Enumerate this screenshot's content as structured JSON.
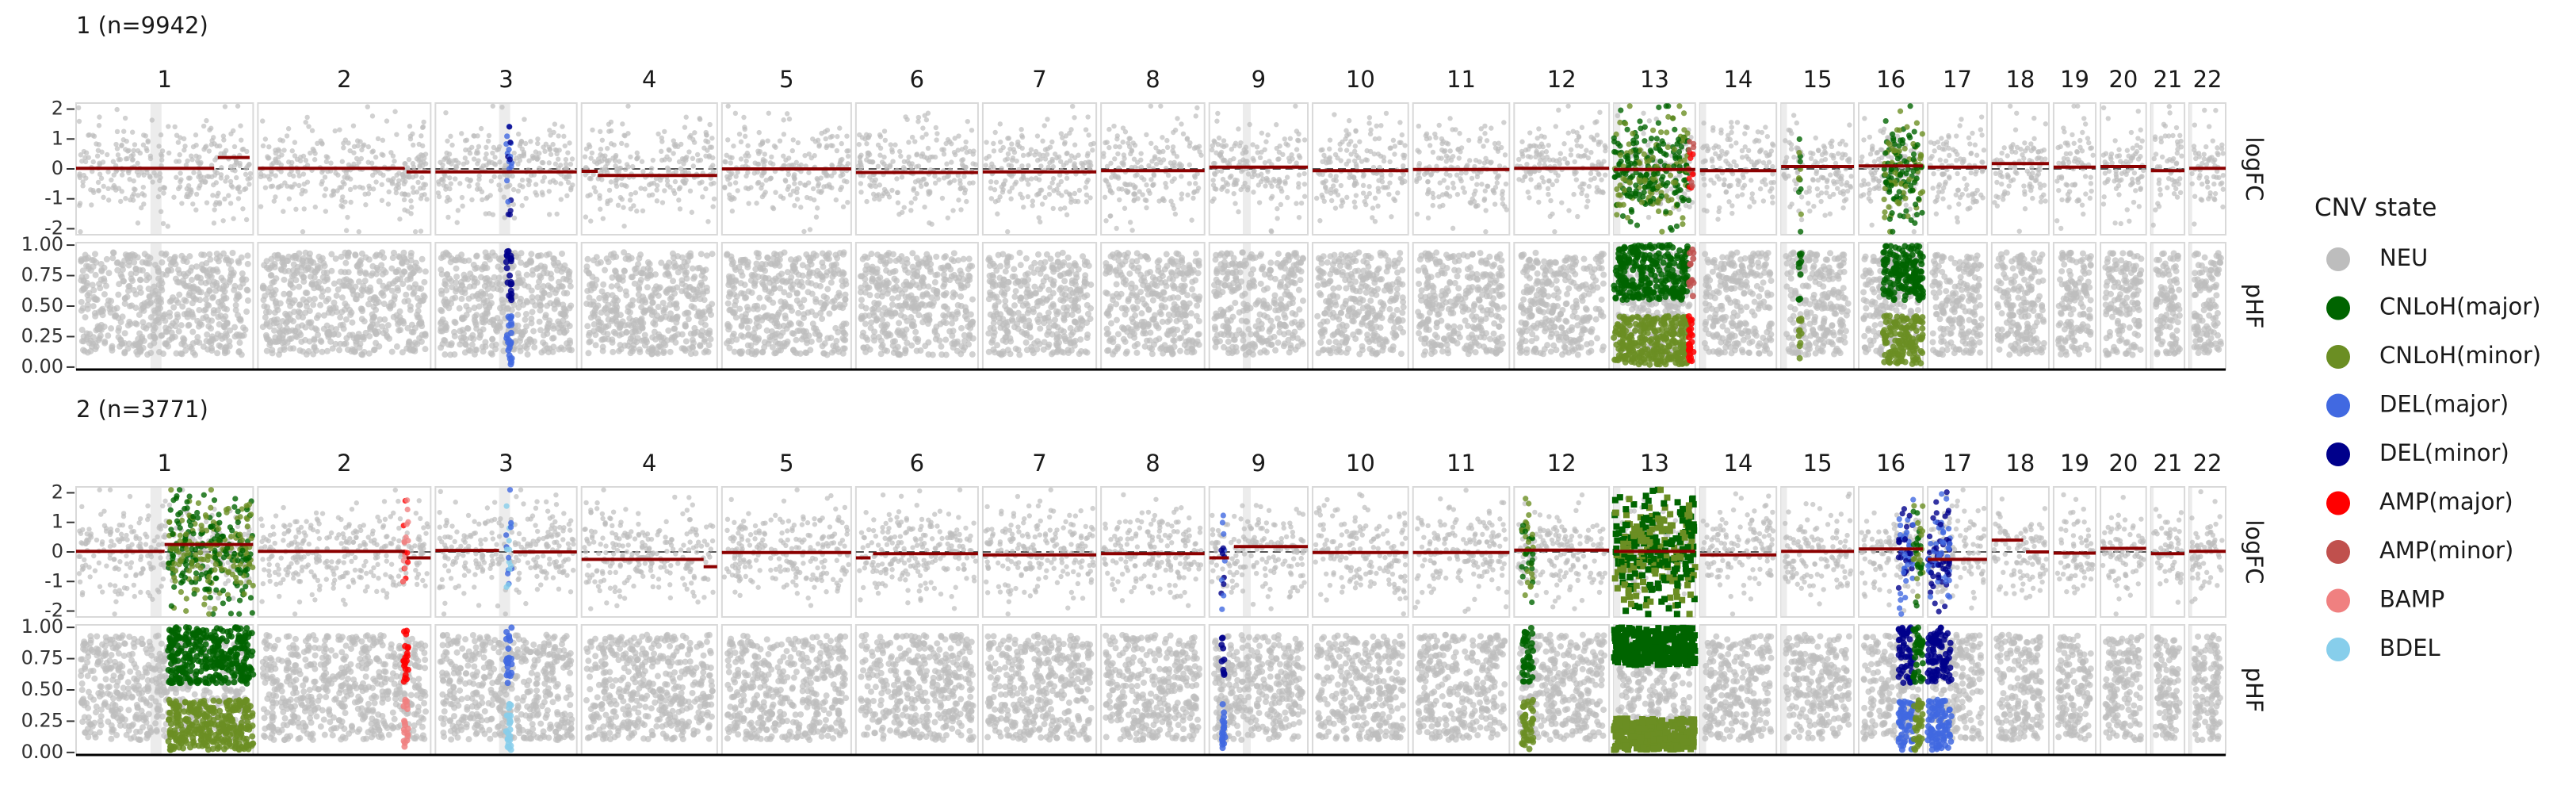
{
  "chart_data": {
    "type": "scatter",
    "legend": {
      "title": "CNV state",
      "position": "right",
      "entries": [
        {
          "label": "NEU",
          "color": "#bdbdbd"
        },
        {
          "label": "CNLoH(major)",
          "color": "#006400"
        },
        {
          "label": "CNLoH(minor)",
          "color": "#6b8e23"
        },
        {
          "label": "DEL(major)",
          "color": "#4169e1"
        },
        {
          "label": "DEL(minor)",
          "color": "#00008b"
        },
        {
          "label": "AMP(major)",
          "color": "#ff0000"
        },
        {
          "label": "AMP(minor)",
          "color": "#c0504d"
        },
        {
          "label": "BAMP",
          "color": "#f08080"
        },
        {
          "label": "BDEL",
          "color": "#87ceeb"
        }
      ]
    },
    "chromosomes": [
      "1",
      "2",
      "3",
      "4",
      "5",
      "6",
      "7",
      "8",
      "9",
      "10",
      "11",
      "12",
      "13",
      "14",
      "15",
      "16",
      "17",
      "18",
      "19",
      "20",
      "21",
      "22"
    ],
    "chrom_rel_widths": [
      248,
      242,
      198,
      190,
      181,
      171,
      159,
      145,
      138,
      134,
      135,
      133,
      114,
      107,
      102,
      90,
      83,
      80,
      59,
      64,
      47,
      51
    ],
    "facets": [
      "logFC",
      "pHF"
    ],
    "logFC_axis": {
      "range": [
        -2.2,
        2.2
      ],
      "ticks": [
        2,
        1,
        0,
        -1,
        -2
      ]
    },
    "pHF_axis": {
      "range": [
        -0.02,
        1.02
      ],
      "ticks": [
        "1.00",
        "0.75",
        "0.50",
        "0.25",
        "0.00"
      ]
    },
    "panels": [
      {
        "title": "1 (n=9942)",
        "logFC_segments": [
          {
            "chrom": 1,
            "start": 0.0,
            "end": 0.78,
            "value": 0.02
          },
          {
            "chrom": 1,
            "start": 0.8,
            "end": 0.98,
            "value": 0.38
          },
          {
            "chrom": 2,
            "start": 0.0,
            "end": 0.85,
            "value": 0.02
          },
          {
            "chrom": 2,
            "start": 0.86,
            "end": 1.0,
            "value": -0.1
          },
          {
            "chrom": 3,
            "start": 0.0,
            "end": 1.0,
            "value": -0.1
          },
          {
            "chrom": 4,
            "start": 0.0,
            "end": 0.12,
            "value": -0.08
          },
          {
            "chrom": 4,
            "start": 0.12,
            "end": 1.0,
            "value": -0.22
          },
          {
            "chrom": 5,
            "start": 0.0,
            "end": 1.0,
            "value": 0.0
          },
          {
            "chrom": 6,
            "start": 0.0,
            "end": 1.0,
            "value": -0.12
          },
          {
            "chrom": 7,
            "start": 0.0,
            "end": 1.0,
            "value": -0.1
          },
          {
            "chrom": 8,
            "start": 0.0,
            "end": 1.0,
            "value": -0.06
          },
          {
            "chrom": 9,
            "start": 0.0,
            "end": 1.0,
            "value": 0.06
          },
          {
            "chrom": 10,
            "start": 0.0,
            "end": 1.0,
            "value": -0.06
          },
          {
            "chrom": 11,
            "start": 0.0,
            "end": 1.0,
            "value": -0.02
          },
          {
            "chrom": 12,
            "start": 0.0,
            "end": 1.0,
            "value": 0.02
          },
          {
            "chrom": 13,
            "start": 0.0,
            "end": 1.0,
            "value": -0.02
          },
          {
            "chrom": 14,
            "start": 0.0,
            "end": 1.0,
            "value": -0.06
          },
          {
            "chrom": 15,
            "start": 0.0,
            "end": 1.0,
            "value": 0.08
          },
          {
            "chrom": 16,
            "start": 0.0,
            "end": 1.0,
            "value": 0.1
          },
          {
            "chrom": 17,
            "start": 0.0,
            "end": 1.0,
            "value": 0.06
          },
          {
            "chrom": 18,
            "start": 0.0,
            "end": 1.0,
            "value": 0.18
          },
          {
            "chrom": 19,
            "start": 0.0,
            "end": 1.0,
            "value": 0.06
          },
          {
            "chrom": 20,
            "start": 0.0,
            "end": 1.0,
            "value": 0.08
          },
          {
            "chrom": 21,
            "start": 0.0,
            "end": 1.0,
            "value": -0.06
          },
          {
            "chrom": 22,
            "start": 0.0,
            "end": 1.0,
            "value": 0.02
          }
        ],
        "cnv_regions": [
          {
            "chrom": 3,
            "start": 0.5,
            "end": 0.54,
            "state": "DEL(minor)",
            "alt": "DEL(major)"
          },
          {
            "chrom": 13,
            "start": 0.0,
            "end": 0.92,
            "state": "CNLoH(major)",
            "alt": "CNLoH(minor)"
          },
          {
            "chrom": 13,
            "start": 0.92,
            "end": 0.98,
            "state": "AMP(minor)",
            "alt": "AMP(major)"
          },
          {
            "chrom": 15,
            "start": 0.24,
            "end": 0.28,
            "state": "CNLoH(major)",
            "alt": "CNLoH(minor)"
          },
          {
            "chrom": 16,
            "start": 0.38,
            "end": 1.0,
            "state": "CNLoH(major)",
            "alt": "CNLoH(minor)"
          }
        ]
      },
      {
        "title": "2 (n=3771)",
        "logFC_segments": [
          {
            "chrom": 1,
            "start": 0.0,
            "end": 0.5,
            "value": 0.02
          },
          {
            "chrom": 1,
            "start": 0.5,
            "end": 1.0,
            "value": 0.25
          },
          {
            "chrom": 2,
            "start": 0.0,
            "end": 0.85,
            "value": 0.02
          },
          {
            "chrom": 2,
            "start": 0.86,
            "end": 1.0,
            "value": -0.2
          },
          {
            "chrom": 3,
            "start": 0.0,
            "end": 0.45,
            "value": 0.05
          },
          {
            "chrom": 3,
            "start": 0.55,
            "end": 1.0,
            "value": 0.0
          },
          {
            "chrom": 4,
            "start": 0.0,
            "end": 0.9,
            "value": -0.25
          },
          {
            "chrom": 4,
            "start": 0.9,
            "end": 1.0,
            "value": -0.5
          },
          {
            "chrom": 5,
            "start": 0.0,
            "end": 1.0,
            "value": -0.02
          },
          {
            "chrom": 6,
            "start": 0.0,
            "end": 0.12,
            "value": -0.2
          },
          {
            "chrom": 6,
            "start": 0.14,
            "end": 1.0,
            "value": -0.06
          },
          {
            "chrom": 7,
            "start": 0.0,
            "end": 1.0,
            "value": -0.1
          },
          {
            "chrom": 8,
            "start": 0.0,
            "end": 1.0,
            "value": -0.06
          },
          {
            "chrom": 9,
            "start": 0.0,
            "end": 0.2,
            "value": -0.2
          },
          {
            "chrom": 9,
            "start": 0.25,
            "end": 1.0,
            "value": 0.18
          },
          {
            "chrom": 10,
            "start": 0.0,
            "end": 1.0,
            "value": -0.02
          },
          {
            "chrom": 11,
            "start": 0.0,
            "end": 1.0,
            "value": -0.02
          },
          {
            "chrom": 12,
            "start": 0.0,
            "end": 1.0,
            "value": 0.06
          },
          {
            "chrom": 13,
            "start": 0.0,
            "end": 1.0,
            "value": 0.02
          },
          {
            "chrom": 14,
            "start": 0.0,
            "end": 1.0,
            "value": -0.1
          },
          {
            "chrom": 15,
            "start": 0.0,
            "end": 1.0,
            "value": 0.02
          },
          {
            "chrom": 16,
            "start": 0.0,
            "end": 1.0,
            "value": 0.1
          },
          {
            "chrom": 17,
            "start": 0.0,
            "end": 1.0,
            "value": -0.25
          },
          {
            "chrom": 18,
            "start": 0.0,
            "end": 0.55,
            "value": 0.4
          },
          {
            "chrom": 18,
            "start": 0.6,
            "end": 1.0,
            "value": 0.0
          },
          {
            "chrom": 19,
            "start": 0.0,
            "end": 1.0,
            "value": -0.04
          },
          {
            "chrom": 20,
            "start": 0.0,
            "end": 1.0,
            "value": 0.12
          },
          {
            "chrom": 21,
            "start": 0.0,
            "end": 1.0,
            "value": -0.06
          },
          {
            "chrom": 22,
            "start": 0.0,
            "end": 1.0,
            "value": 0.02
          }
        ],
        "cnv_regions": [
          {
            "chrom": 1,
            "start": 0.52,
            "end": 1.0,
            "state": "CNLoH(major)",
            "alt": "CNLoH(minor)"
          },
          {
            "chrom": 2,
            "start": 0.84,
            "end": 0.87,
            "state": "AMP(major)",
            "alt": "BAMP"
          },
          {
            "chrom": 3,
            "start": 0.5,
            "end": 0.54,
            "state": "DEL(major)",
            "alt": "BDEL"
          },
          {
            "chrom": 9,
            "start": 0.12,
            "end": 0.16,
            "state": "DEL(minor)",
            "alt": "DEL(major)"
          },
          {
            "chrom": 12,
            "start": 0.08,
            "end": 0.2,
            "state": "CNLoH(major)",
            "alt": "CNLoH(minor)"
          },
          {
            "chrom": 13,
            "start": 0.0,
            "end": 1.0,
            "state": "CNLoH(major)",
            "alt": "CNLoH(minor)"
          },
          {
            "chrom": 16,
            "start": 0.62,
            "end": 0.85,
            "state": "DEL(minor)",
            "alt": "DEL(major)"
          },
          {
            "chrom": 16,
            "start": 0.85,
            "end": 1.0,
            "state": "CNLoH(major)",
            "alt": "CNLoH(minor)"
          },
          {
            "chrom": 17,
            "start": 0.0,
            "end": 0.4,
            "state": "DEL(minor)",
            "alt": "DEL(major)"
          }
        ]
      }
    ]
  }
}
